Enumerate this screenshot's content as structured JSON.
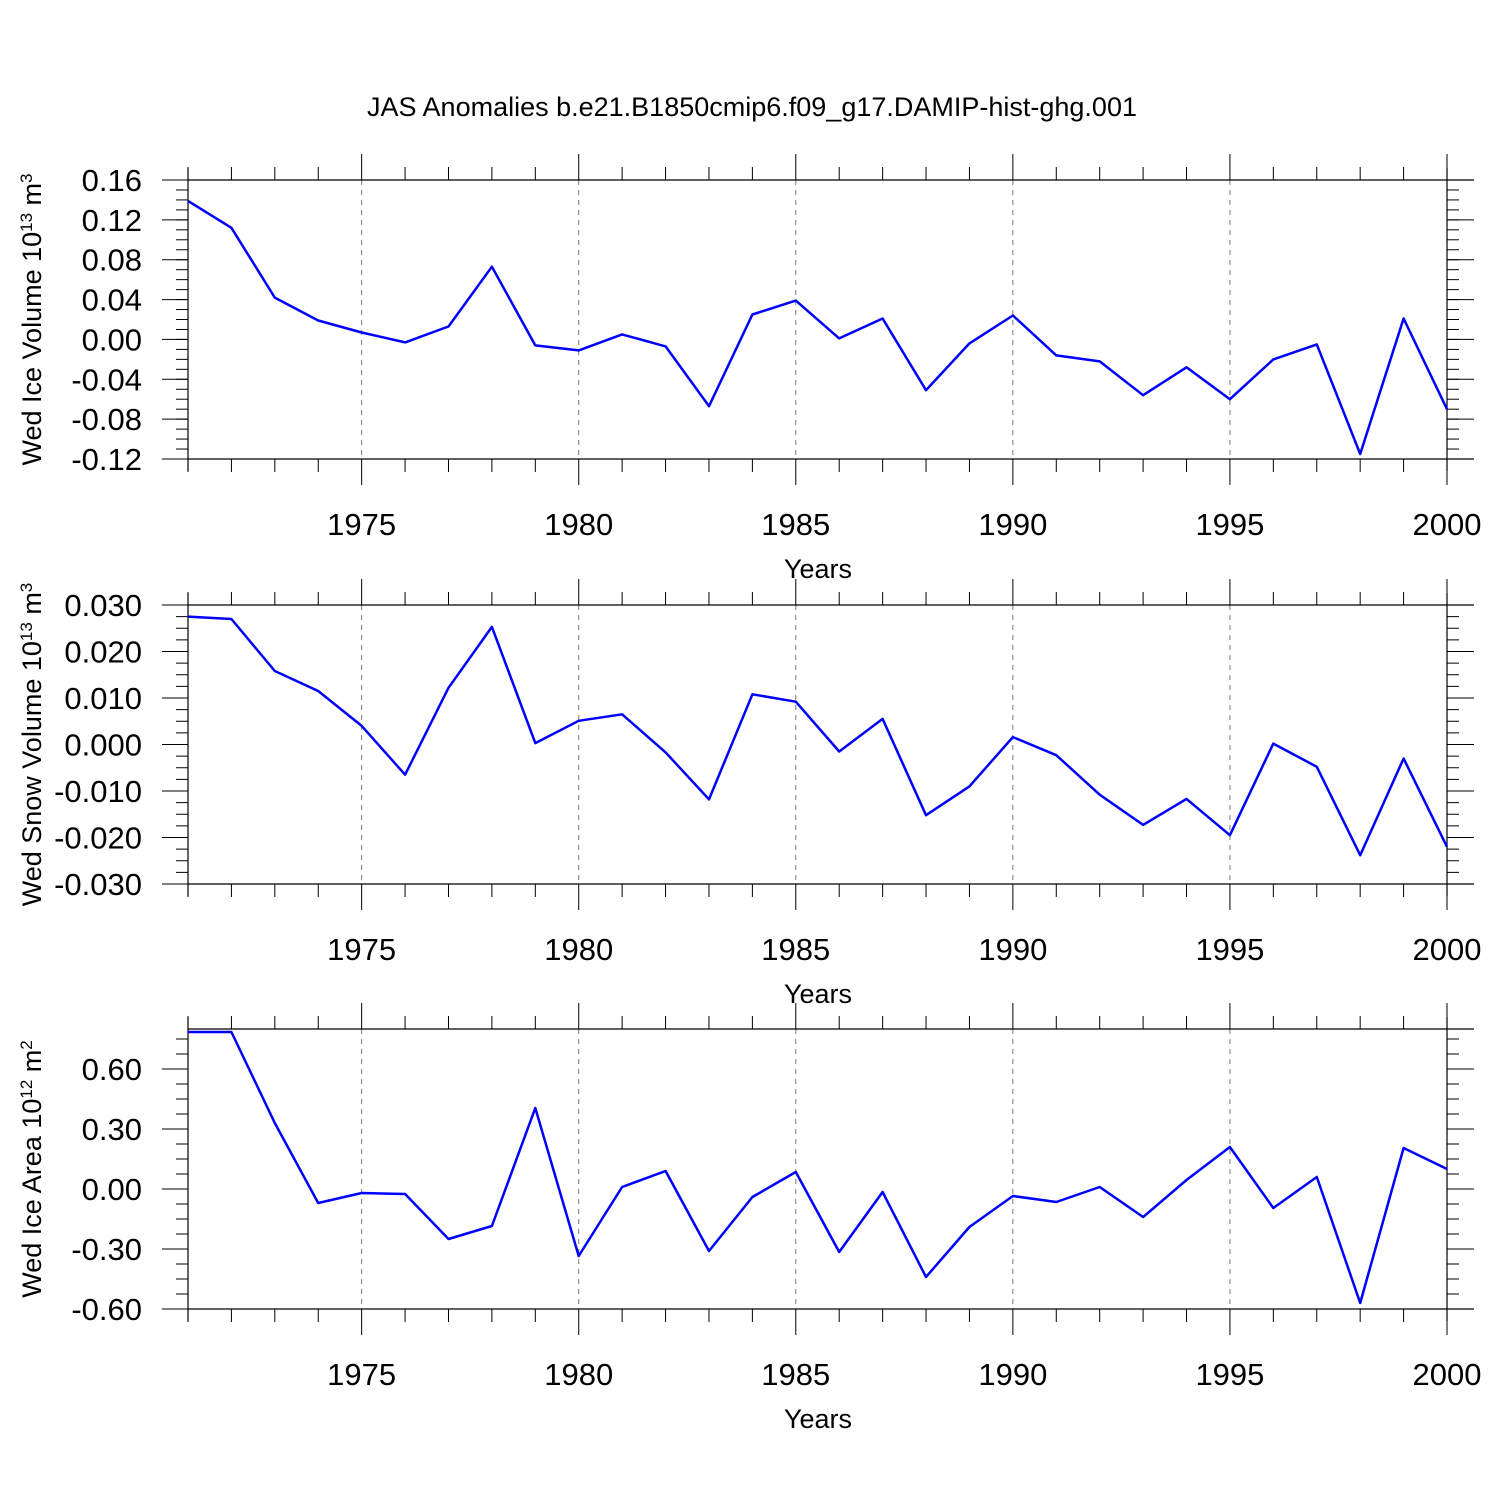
{
  "title": "JAS Anomalies b.e21.B1850cmip6.f09_g17.DAMIP-hist-ghg.001",
  "colors": {
    "series": "#0000ff",
    "axis": "#000000",
    "grid": "#777777"
  },
  "chart_data": [
    {
      "type": "line",
      "ylabel": "Wed Ice Volume 10",
      "ylabel_exp": "13",
      "ylabel_unit": " m",
      "ylabel_unit_exp": "3",
      "xlabel": "Years",
      "xlim": [
        1971,
        2000
      ],
      "ylim": [
        -0.12,
        0.16
      ],
      "xticks": [
        1975,
        1980,
        1985,
        1990,
        1995,
        2000
      ],
      "yticks": [
        -0.12,
        -0.08,
        -0.04,
        0.0,
        0.04,
        0.08,
        0.12,
        0.16
      ],
      "ytick_labels": [
        "-0.12",
        "-0.08",
        "-0.04",
        "0.00",
        "0.04",
        "0.08",
        "0.12",
        "0.16"
      ],
      "grid": "vertical dashed at major x ticks",
      "x": [
        1971,
        1972,
        1973,
        1974,
        1975,
        1976,
        1977,
        1978,
        1979,
        1980,
        1981,
        1982,
        1983,
        1984,
        1985,
        1986,
        1987,
        1988,
        1989,
        1990,
        1991,
        1992,
        1993,
        1994,
        1995,
        1996,
        1997,
        1998,
        1999,
        2000
      ],
      "values": [
        0.139,
        0.112,
        0.042,
        0.019,
        0.007,
        -0.003,
        0.013,
        0.073,
        -0.006,
        -0.011,
        0.005,
        -0.007,
        -0.067,
        0.025,
        0.039,
        0.001,
        0.021,
        -0.051,
        -0.004,
        0.024,
        -0.016,
        -0.022,
        -0.056,
        -0.028,
        -0.06,
        -0.02,
        -0.005,
        -0.115,
        0.021,
        -0.07
      ]
    },
    {
      "type": "line",
      "ylabel": "Wed Snow Volume 10",
      "ylabel_exp": "13",
      "ylabel_unit": " m",
      "ylabel_unit_exp": "3",
      "xlabel": "Years",
      "xlim": [
        1971,
        2000
      ],
      "ylim": [
        -0.03,
        0.03
      ],
      "xticks": [
        1975,
        1980,
        1985,
        1990,
        1995,
        2000
      ],
      "yticks": [
        -0.03,
        -0.02,
        -0.01,
        0.0,
        0.01,
        0.02,
        0.03
      ],
      "ytick_labels": [
        "-0.030",
        "-0.020",
        "-0.010",
        "0.000",
        "0.010",
        "0.020",
        "0.030"
      ],
      "grid": "vertical dashed at major x ticks",
      "x": [
        1971,
        1972,
        1973,
        1974,
        1975,
        1976,
        1977,
        1978,
        1979,
        1980,
        1981,
        1982,
        1983,
        1984,
        1985,
        1986,
        1987,
        1988,
        1989,
        1990,
        1991,
        1992,
        1993,
        1994,
        1995,
        1996,
        1997,
        1998,
        1999,
        2000
      ],
      "values": [
        0.0275,
        0.027,
        0.0158,
        0.0115,
        0.004,
        -0.0065,
        0.0122,
        0.0253,
        0.0003,
        0.0051,
        0.0065,
        -0.0017,
        -0.0118,
        0.0108,
        0.0092,
        -0.0015,
        0.0055,
        -0.0152,
        -0.009,
        0.0016,
        -0.0023,
        -0.0108,
        -0.0173,
        -0.0117,
        -0.0195,
        0.0002,
        -0.0048,
        -0.0238,
        -0.003,
        -0.022
      ]
    },
    {
      "type": "line",
      "ylabel": "Wed Ice Area 10",
      "ylabel_exp": "12",
      "ylabel_unit": " m",
      "ylabel_unit_exp": "2",
      "xlabel": "Years",
      "xlim": [
        1971,
        2000
      ],
      "ylim": [
        -0.6,
        0.8
      ],
      "xticks": [
        1975,
        1980,
        1985,
        1990,
        1995,
        2000
      ],
      "yticks": [
        -0.6,
        -0.3,
        0.0,
        0.3,
        0.6
      ],
      "ytick_labels": [
        "-0.60",
        "-0.30",
        "0.00",
        "0.30",
        "0.60"
      ],
      "grid": "vertical dashed at major x ticks",
      "x": [
        1971,
        1972,
        1973,
        1974,
        1975,
        1976,
        1977,
        1978,
        1979,
        1980,
        1981,
        1982,
        1983,
        1984,
        1985,
        1986,
        1987,
        1988,
        1989,
        1990,
        1991,
        1992,
        1993,
        1994,
        1995,
        1996,
        1997,
        1998,
        1999,
        2000
      ],
      "values": [
        0.785,
        0.785,
        0.33,
        -0.07,
        -0.02,
        -0.025,
        -0.25,
        -0.185,
        0.405,
        -0.335,
        0.01,
        0.09,
        -0.31,
        -0.04,
        0.085,
        -0.315,
        -0.015,
        -0.44,
        -0.19,
        -0.035,
        -0.065,
        0.01,
        -0.14,
        0.045,
        0.21,
        -0.095,
        0.06,
        -0.57,
        0.205,
        0.1
      ]
    }
  ]
}
